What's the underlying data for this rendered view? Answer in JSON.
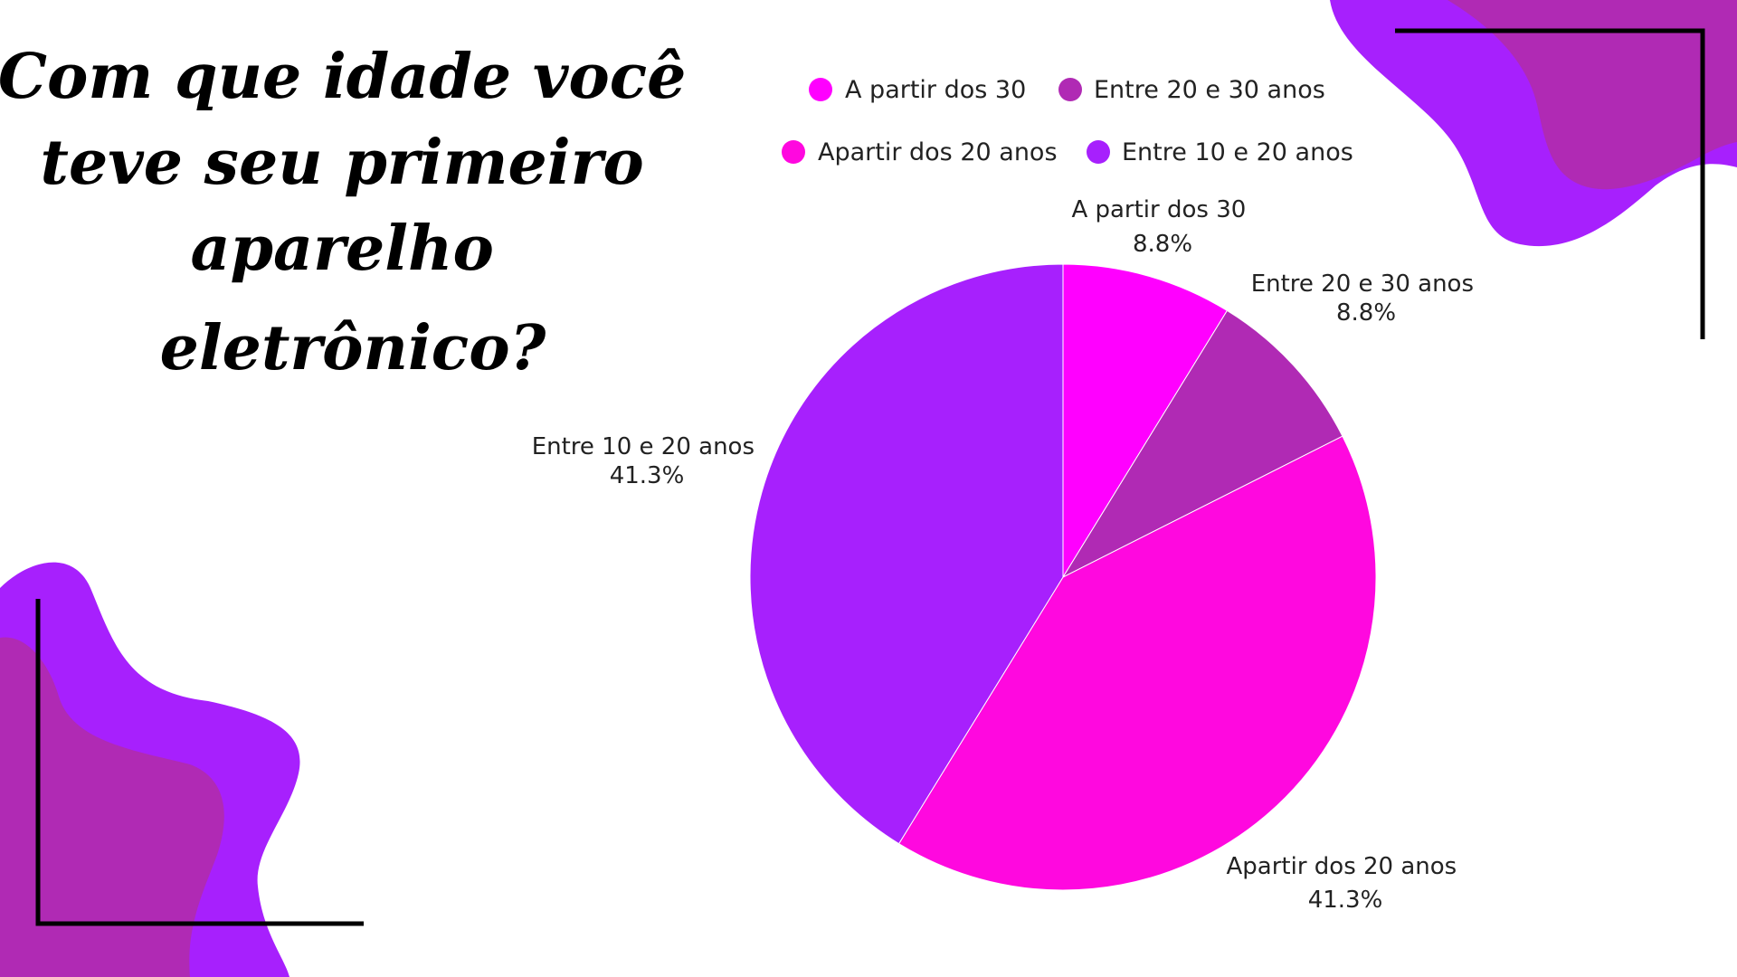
{
  "title_lines": [
    "Com que idade você",
    "teve seu primeiro",
    "aparelho",
    "eletrônico?"
  ],
  "colors": {
    "magenta": "#ff00ff",
    "plum": "#b02ab4",
    "pink": "#ff08df",
    "violet": "#a720fd",
    "blob_light": "#a720fd",
    "blob_dark": "#b02ab4",
    "frame": "#000000"
  },
  "chart_data": {
    "type": "pie",
    "title": "Com que idade você teve seu primeiro aparelho eletrônico?",
    "start_angle_deg": 0,
    "direction": "clockwise",
    "legend_position": "top",
    "slices": [
      {
        "label": "A partir dos 30",
        "value": 8.8,
        "display": "8.8%",
        "color": "#ff00ff"
      },
      {
        "label": "Entre 20 e 30 anos",
        "value": 8.8,
        "display": "8.8%",
        "color": "#b02ab4"
      },
      {
        "label": "Apartir dos 20 anos",
        "value": 41.3,
        "display": "41.3%",
        "color": "#ff08df"
      },
      {
        "label": "Entre 10 e 20 anos",
        "value": 41.3,
        "display": "41.3%",
        "color": "#a720fd"
      }
    ]
  }
}
